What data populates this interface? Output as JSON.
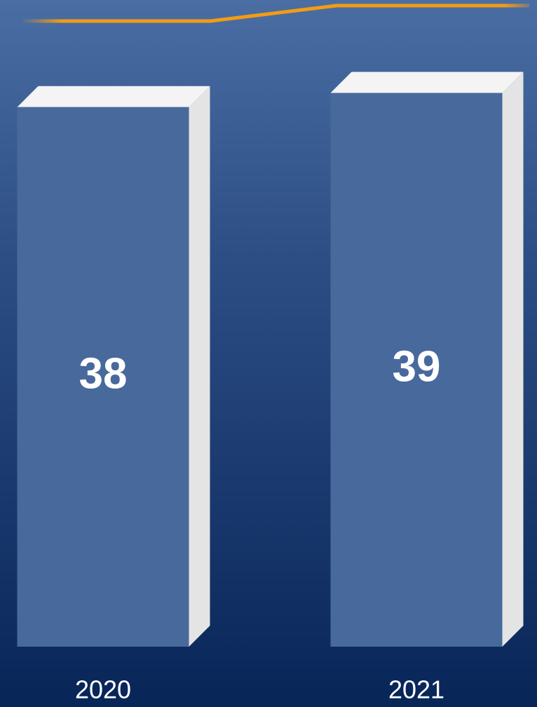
{
  "chart_data": {
    "type": "bar",
    "categories": [
      "2020",
      "2021"
    ],
    "values": [
      38,
      39
    ],
    "color": "#48699c",
    "ylim": [
      0,
      45
    ]
  }
}
